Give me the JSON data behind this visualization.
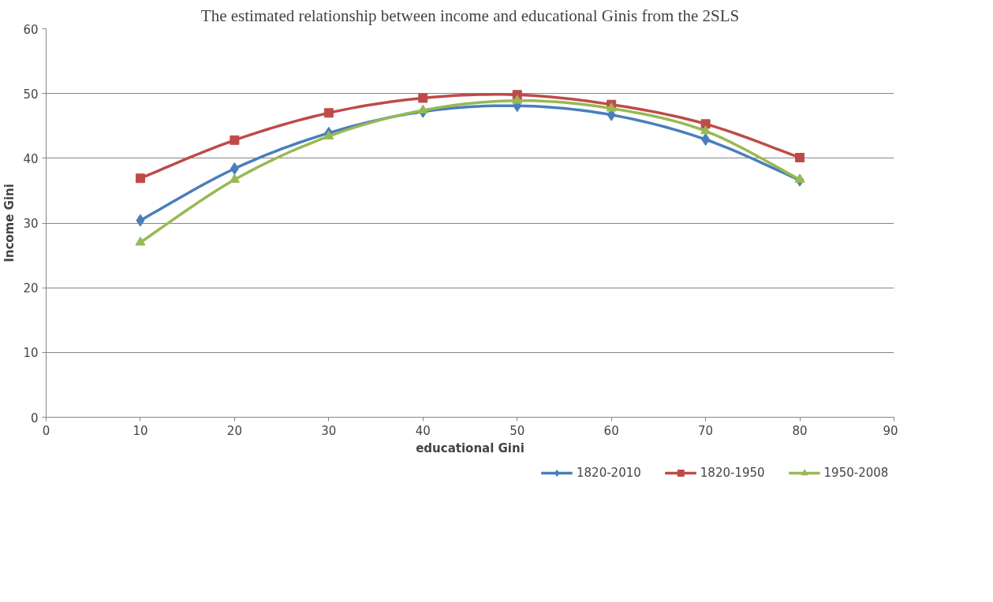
{
  "chart_data": {
    "type": "line",
    "title": "The estimated relationship between income and educational Ginis from the 2SLS",
    "xlabel": "educational Gini",
    "ylabel": "Income Gini",
    "x": [
      10,
      20,
      30,
      40,
      50,
      60,
      70,
      80
    ],
    "series": [
      {
        "name": "1820-2010",
        "color": "#4a7ebb",
        "marker": "diamond",
        "values": [
          30.4,
          38.4,
          43.9,
          47.2,
          48.1,
          46.7,
          42.9,
          36.6
        ]
      },
      {
        "name": "1820-1950",
        "color": "#be4b48",
        "marker": "square",
        "values": [
          36.9,
          42.8,
          47.0,
          49.3,
          49.8,
          48.3,
          45.3,
          40.1
        ]
      },
      {
        "name": "1950-2008",
        "color": "#98b954",
        "marker": "triangle",
        "values": [
          27.0,
          36.7,
          43.4,
          47.4,
          48.9,
          47.7,
          44.2,
          36.7
        ]
      }
    ],
    "xlim": [
      0,
      90
    ],
    "xticks": [
      0,
      10,
      20,
      30,
      40,
      50,
      60,
      70,
      80,
      90
    ],
    "ylim": [
      0,
      60
    ],
    "yticks": [
      0,
      10,
      20,
      30,
      40,
      50,
      60
    ],
    "grid": "y",
    "legend": "bottom",
    "line_style": "solid"
  }
}
